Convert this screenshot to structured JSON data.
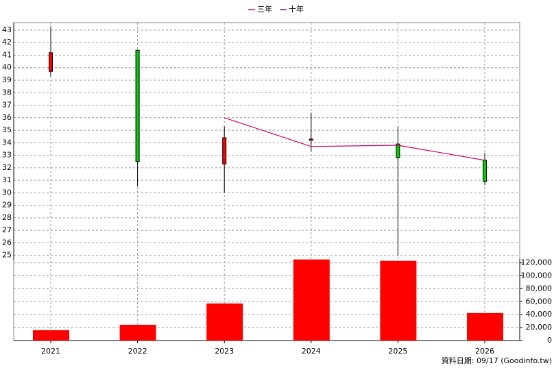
{
  "chart_data": {
    "type": "candlestick",
    "categories": [
      "2021",
      "2022",
      "2023",
      "2024",
      "2025",
      "2026"
    ],
    "ohlc": {
      "open": [
        39.7,
        41.4,
        32.3,
        34.2,
        33.9,
        32.6
      ],
      "high": [
        43.3,
        41.4,
        35.3,
        36.4,
        35.3,
        33.2
      ],
      "low": [
        39.3,
        30.5,
        30.0,
        33.3,
        25.0,
        30.6
      ],
      "close": [
        41.2,
        32.5,
        34.4,
        34.3,
        32.8,
        30.9
      ]
    },
    "up_color": "#ff0000",
    "down_color": "#00cc00",
    "series": [
      {
        "name": "三年",
        "color": "#cc0066",
        "values": [
          null,
          null,
          36.0,
          33.7,
          33.8,
          32.6
        ]
      },
      {
        "name": "十年",
        "color": "#8000c0",
        "values": [
          null,
          null,
          null,
          null,
          null,
          null
        ]
      }
    ],
    "volume": {
      "color": "#ff0000",
      "axis": "y2",
      "values": [
        16000,
        24400,
        57300,
        125300,
        123200,
        42500
      ]
    },
    "ylim": [
      24.6,
      43.6
    ],
    "yticks": [
      25,
      26,
      27,
      28,
      29,
      30,
      31,
      32,
      33,
      34,
      35,
      36,
      37,
      38,
      39,
      40,
      41,
      42,
      43
    ],
    "y2lim": [
      0,
      126000
    ],
    "y2ticks": [
      0,
      {
        "value": 20000,
        "label": "20,000"
      },
      {
        "value": 40000,
        "label": "40,000"
      },
      {
        "value": 60000,
        "label": "60,000"
      },
      {
        "value": 80000,
        "label": "80,000"
      },
      {
        "value": 100000,
        "label": "100,000"
      },
      {
        "value": 120000,
        "label": "120,000"
      }
    ],
    "grid": true,
    "source": "資料日期: 09/17  (Goodinfo.tw)"
  }
}
